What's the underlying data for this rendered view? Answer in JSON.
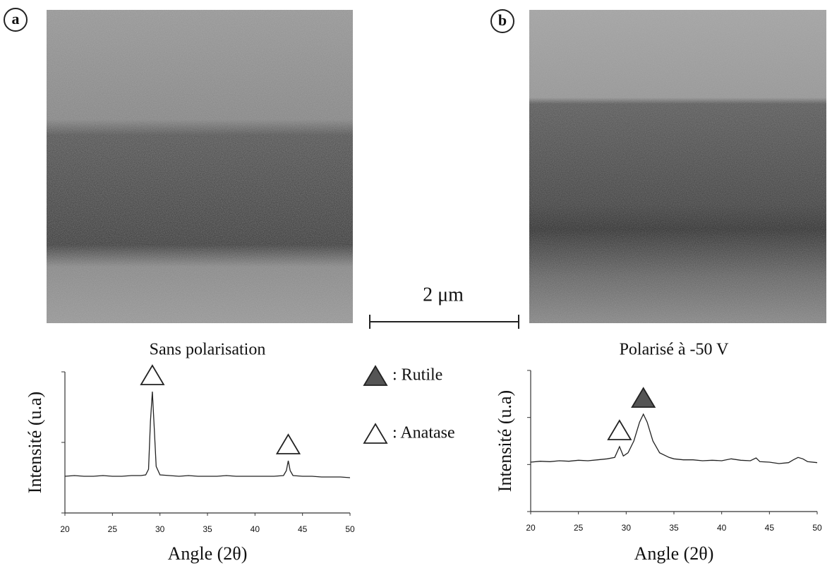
{
  "panels": [
    {
      "label": "a"
    },
    {
      "label": "b"
    }
  ],
  "scale_bar": "2 μm",
  "legend": [
    {
      "label": ": Rutile",
      "color": "#555555"
    },
    {
      "label": ": Anatase",
      "color": "#ffffff"
    }
  ],
  "chart_data": [
    {
      "type": "line",
      "title": "Sans polarisation",
      "x_label": "Angle (2θ)",
      "y_label": "Intensité (u.a)",
      "color": "#222222",
      "x": [
        20,
        21,
        22,
        23,
        24,
        25,
        26,
        27,
        28,
        28.5,
        28.8,
        29.0,
        29.2,
        29.4,
        29.6,
        30,
        31,
        32,
        33,
        34,
        35,
        36,
        37,
        38,
        39,
        40,
        41,
        42,
        43,
        43.3,
        43.5,
        43.7,
        44,
        45,
        46,
        47,
        48,
        49,
        50
      ],
      "values": [
        0.52,
        0.53,
        0.52,
        0.52,
        0.53,
        0.52,
        0.52,
        0.53,
        0.53,
        0.54,
        0.62,
        1.3,
        1.72,
        1.2,
        0.66,
        0.54,
        0.53,
        0.52,
        0.53,
        0.52,
        0.52,
        0.52,
        0.53,
        0.52,
        0.52,
        0.52,
        0.52,
        0.52,
        0.53,
        0.6,
        0.74,
        0.6,
        0.53,
        0.52,
        0.52,
        0.51,
        0.51,
        0.51,
        0.5
      ],
      "markers": [
        {
          "x": 29.2,
          "color": "#ffffff"
        },
        {
          "x": 43.5,
          "color": "#ffffff"
        }
      ],
      "xlim": [
        20,
        50
      ],
      "ylim": [
        0,
        2
      ],
      "xticks": [
        20,
        25,
        30,
        35,
        40,
        45,
        50
      ],
      "yticks": [
        0,
        1,
        2
      ]
    },
    {
      "type": "line",
      "title": "Polarisé à -50 V",
      "x_label": "Angle (2θ)",
      "y_label": "Intensité (u.a)",
      "color": "#222222",
      "x": [
        20,
        21,
        22,
        23,
        24,
        25,
        26,
        27,
        28,
        28.8,
        29.3,
        29.7,
        30.2,
        30.8,
        31.4,
        31.8,
        32.2,
        32.8,
        33.5,
        34.5,
        35,
        36,
        37,
        38,
        39,
        40,
        41,
        42,
        43,
        43.6,
        44,
        45,
        46,
        47,
        47.5,
        48,
        48.5,
        49,
        50
      ],
      "values": [
        1.05,
        1.07,
        1.06,
        1.08,
        1.07,
        1.09,
        1.08,
        1.1,
        1.12,
        1.15,
        1.38,
        1.18,
        1.25,
        1.5,
        1.9,
        2.07,
        1.9,
        1.5,
        1.25,
        1.15,
        1.12,
        1.1,
        1.1,
        1.08,
        1.09,
        1.08,
        1.12,
        1.09,
        1.08,
        1.14,
        1.06,
        1.05,
        1.02,
        1.04,
        1.1,
        1.15,
        1.12,
        1.06,
        1.04
      ],
      "markers": [
        {
          "x": 31.8,
          "color": "#555555"
        },
        {
          "x": 29.3,
          "color": "#ffffff"
        }
      ],
      "xlim": [
        20,
        50
      ],
      "ylim": [
        0,
        3
      ],
      "xticks": [
        20,
        25,
        30,
        35,
        40,
        45,
        50
      ],
      "yticks": [
        0,
        1,
        2,
        3
      ]
    }
  ]
}
